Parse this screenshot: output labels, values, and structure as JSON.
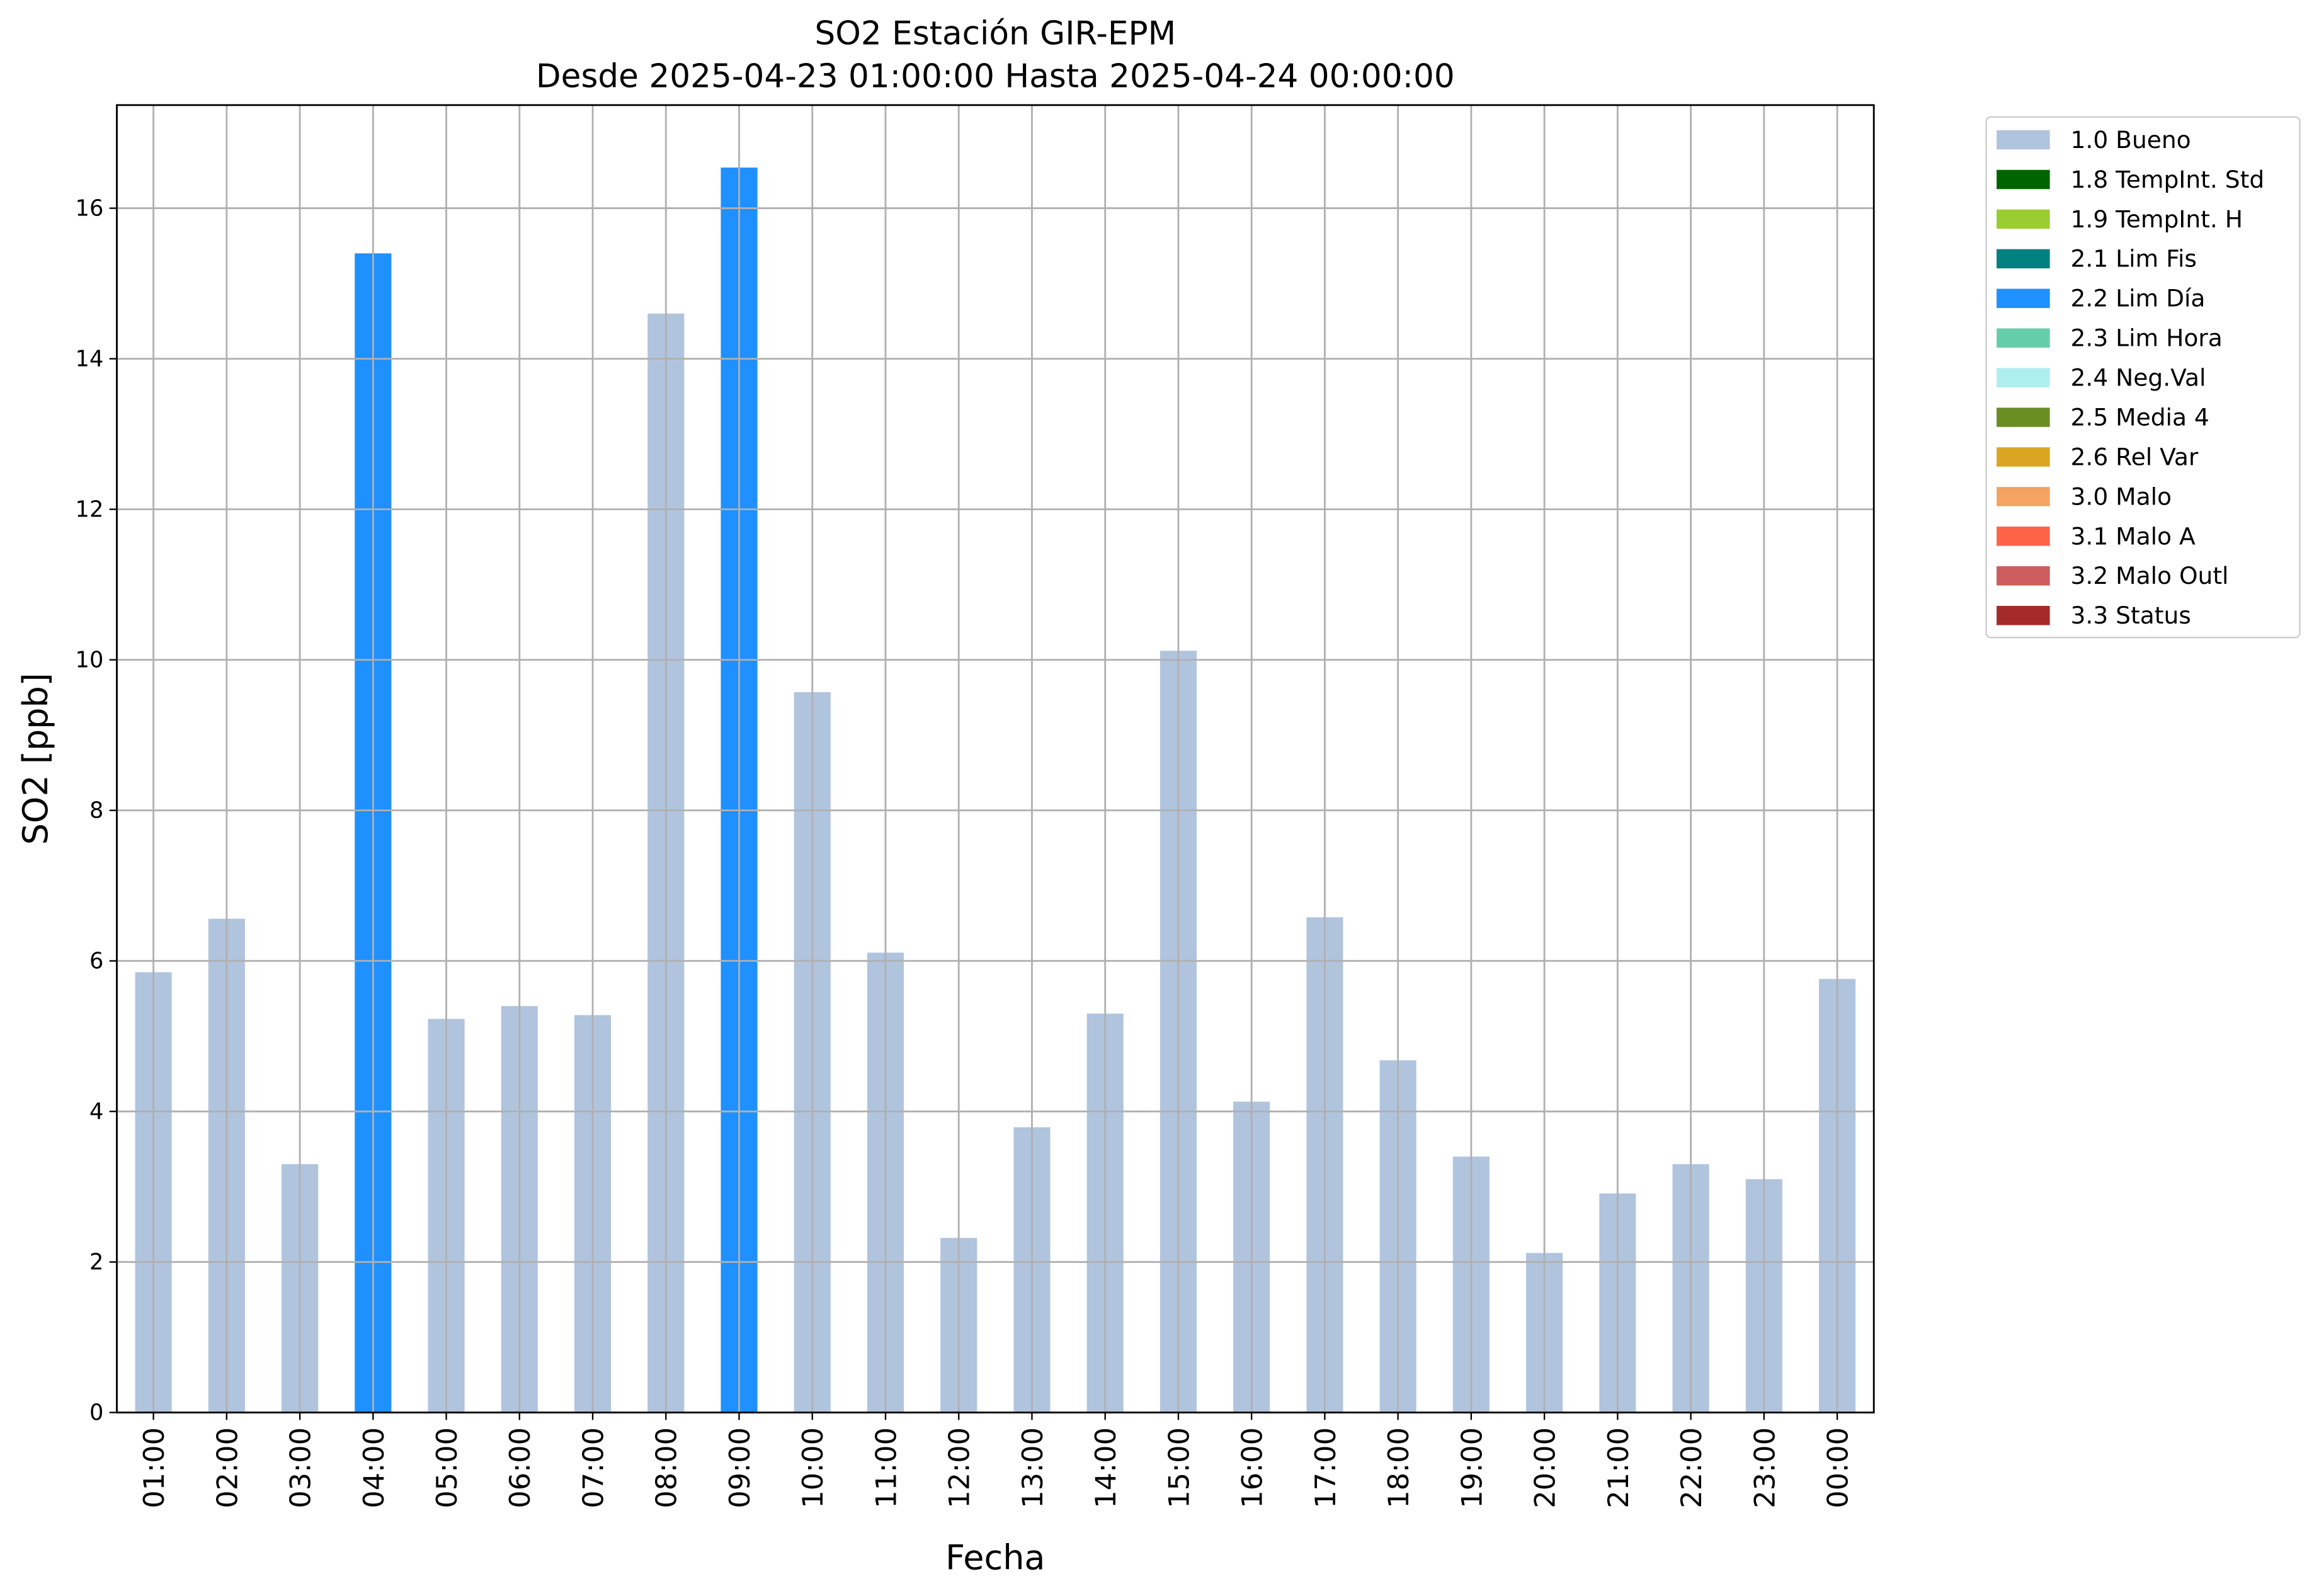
{
  "chart_data": {
    "type": "bar",
    "stacked": true,
    "title": "SO2 Estación GIR-EPM",
    "subtitle": "Desde 2025-04-23 01:00:00 Hasta 2025-04-24 00:00:00",
    "x_label": "Fecha",
    "y_label": "SO2 [ppb]",
    "categories": [
      "01:00",
      "02:00",
      "03:00",
      "04:00",
      "05:00",
      "06:00",
      "07:00",
      "08:00",
      "09:00",
      "10:00",
      "11:00",
      "12:00",
      "13:00",
      "14:00",
      "15:00",
      "16:00",
      "17:00",
      "18:00",
      "19:00",
      "20:00",
      "21:00",
      "22:00",
      "23:00",
      "00:00"
    ],
    "series": [
      {
        "name": "1.0 Bueno",
        "color": "#b0c4de",
        "values": [
          5.85,
          6.56,
          3.3,
          null,
          5.23,
          5.4,
          5.28,
          14.6,
          null,
          9.57,
          6.11,
          2.32,
          3.79,
          5.3,
          10.12,
          4.13,
          6.58,
          4.68,
          3.4,
          2.12,
          2.91,
          3.3,
          3.1,
          5.76
        ]
      },
      {
        "name": "1.8 TempInt. Std",
        "color": "#006400",
        "values": [
          null,
          null,
          null,
          null,
          null,
          null,
          null,
          null,
          null,
          null,
          null,
          null,
          null,
          null,
          null,
          null,
          null,
          null,
          null,
          null,
          null,
          null,
          null,
          null
        ]
      },
      {
        "name": "1.9 TempInt. H",
        "color": "#9acd32",
        "values": [
          null,
          null,
          null,
          null,
          null,
          null,
          null,
          null,
          null,
          null,
          null,
          null,
          null,
          null,
          null,
          null,
          null,
          null,
          null,
          null,
          null,
          null,
          null,
          null
        ]
      },
      {
        "name": "2.1 Lim Fis",
        "color": "#008080",
        "values": [
          null,
          null,
          null,
          null,
          null,
          null,
          null,
          null,
          null,
          null,
          null,
          null,
          null,
          null,
          null,
          null,
          null,
          null,
          null,
          null,
          null,
          null,
          null,
          null
        ]
      },
      {
        "name": "2.2 Lim Día",
        "color": "#1e90ff",
        "values": [
          null,
          null,
          null,
          15.4,
          null,
          null,
          null,
          null,
          16.54,
          null,
          null,
          null,
          null,
          null,
          null,
          null,
          null,
          null,
          null,
          null,
          null,
          null,
          null,
          null
        ]
      },
      {
        "name": "2.3 Lim Hora",
        "color": "#66cdaa",
        "values": [
          null,
          null,
          null,
          null,
          null,
          null,
          null,
          null,
          null,
          null,
          null,
          null,
          null,
          null,
          null,
          null,
          null,
          null,
          null,
          null,
          null,
          null,
          null,
          null
        ]
      },
      {
        "name": "2.4 Neg.Val",
        "color": "#afeeee",
        "values": [
          null,
          null,
          null,
          null,
          null,
          null,
          null,
          null,
          null,
          null,
          null,
          null,
          null,
          null,
          null,
          null,
          null,
          null,
          null,
          null,
          null,
          null,
          null,
          null
        ]
      },
      {
        "name": "2.5 Media 4",
        "color": "#6b8e23",
        "values": [
          null,
          null,
          null,
          null,
          null,
          null,
          null,
          null,
          null,
          null,
          null,
          null,
          null,
          null,
          null,
          null,
          null,
          null,
          null,
          null,
          null,
          null,
          null,
          null
        ]
      },
      {
        "name": "2.6 Rel Var",
        "color": "#daa520",
        "values": [
          null,
          null,
          null,
          null,
          null,
          null,
          null,
          null,
          null,
          null,
          null,
          null,
          null,
          null,
          null,
          null,
          null,
          null,
          null,
          null,
          null,
          null,
          null,
          null
        ]
      },
      {
        "name": "3.0 Malo",
        "color": "#f4a460",
        "values": [
          null,
          null,
          null,
          null,
          null,
          null,
          null,
          null,
          null,
          null,
          null,
          null,
          null,
          null,
          null,
          null,
          null,
          null,
          null,
          null,
          null,
          null,
          null,
          null
        ]
      },
      {
        "name": "3.1 Malo A",
        "color": "#ff6347",
        "values": [
          null,
          null,
          null,
          null,
          null,
          null,
          null,
          null,
          null,
          null,
          null,
          null,
          null,
          null,
          null,
          null,
          null,
          null,
          null,
          null,
          null,
          null,
          null,
          null
        ]
      },
      {
        "name": "3.2 Malo Outl",
        "color": "#cd5c5c",
        "values": [
          null,
          null,
          null,
          null,
          null,
          null,
          null,
          null,
          null,
          null,
          null,
          null,
          null,
          null,
          null,
          null,
          null,
          null,
          null,
          null,
          null,
          null,
          null,
          null
        ]
      },
      {
        "name": "3.3 Status",
        "color": "#a52a2a",
        "values": [
          null,
          null,
          null,
          null,
          null,
          null,
          null,
          null,
          null,
          null,
          null,
          null,
          null,
          null,
          null,
          null,
          null,
          null,
          null,
          null,
          null,
          null,
          null,
          null
        ]
      }
    ],
    "ylim": [
      0,
      17.37
    ],
    "yticks": [
      0,
      2,
      4,
      6,
      8,
      10,
      12,
      14,
      16
    ],
    "grid": true,
    "legend": "outside-right"
  }
}
